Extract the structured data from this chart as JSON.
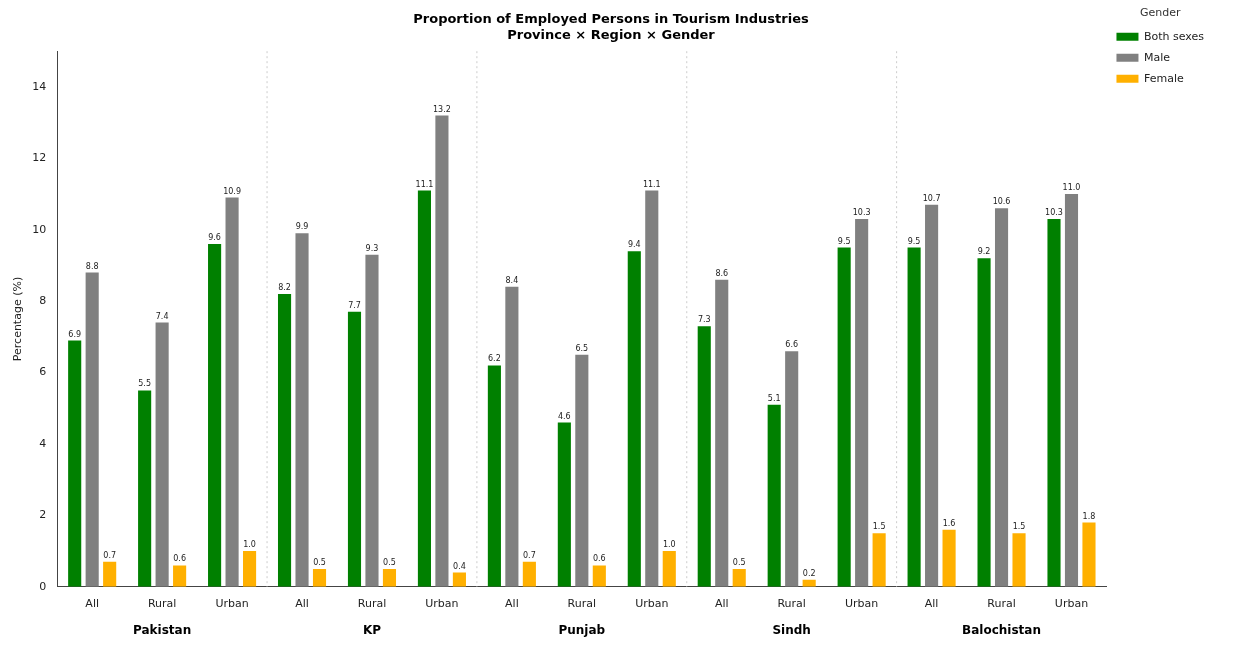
{
  "chart_data": {
    "type": "bar",
    "title": "Proportion of Employed Persons in Tourism Industries",
    "subtitle": "Province × Region × Gender",
    "ylabel": "Percentage (%)",
    "legend_title": "Gender",
    "categories": [
      "All",
      "Rural",
      "Urban",
      "All",
      "Rural",
      "Urban",
      "All",
      "Rural",
      "Urban",
      "All",
      "Rural",
      "Urban",
      "All",
      "Rural",
      "Urban"
    ],
    "annotations": [
      "Pakistan",
      "KP",
      "Punjab",
      "Sindh",
      "Balochistan"
    ],
    "series": [
      {
        "name": "Both sexes",
        "color": "#008000",
        "values": [
          6.9,
          5.5,
          9.6,
          8.2,
          7.7,
          11.1,
          6.2,
          4.6,
          9.4,
          7.3,
          5.1,
          9.5,
          9.5,
          9.2,
          10.3
        ]
      },
      {
        "name": "Male",
        "color": "#808080",
        "values": [
          8.8,
          7.4,
          10.9,
          9.9,
          9.3,
          13.2,
          8.4,
          6.5,
          11.1,
          8.6,
          6.6,
          10.3,
          10.7,
          10.6,
          11.0
        ],
        "value_labels": [
          "8.8",
          "7.4",
          "10.9",
          "9.9",
          "9.3",
          "13.2",
          "8.4",
          "6.5",
          "11.1",
          "8.6",
          "6.6",
          "10.3",
          "10.7",
          "10.6",
          "11.0"
        ]
      },
      {
        "name": "Female",
        "color": "#ffb000",
        "values": [
          0.7,
          0.6,
          1.0,
          0.5,
          0.5,
          0.4,
          0.7,
          0.6,
          1.0,
          0.5,
          0.2,
          1.5,
          1.6,
          1.5,
          1.8
        ],
        "value_labels": [
          "0.7",
          "0.6",
          "1.0",
          "0.5",
          "0.5",
          "0.4",
          "0.7",
          "0.6",
          "1.0",
          "0.5",
          "0.2",
          "1.5",
          "1.6",
          "1.5",
          "1.8"
        ]
      }
    ],
    "data_labels": true,
    "ylim": [
      0,
      15
    ],
    "yticks": [
      0,
      2,
      4,
      6,
      8,
      10,
      12,
      14
    ],
    "grid": false,
    "legend": "top right"
  }
}
